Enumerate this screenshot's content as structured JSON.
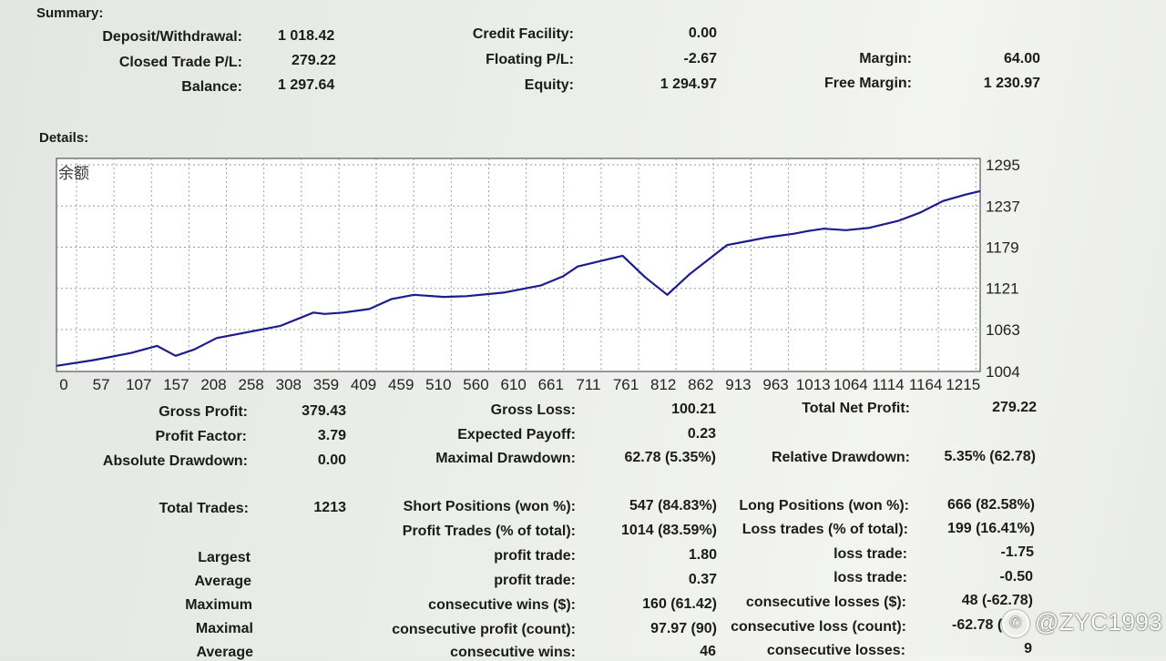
{
  "summary": {
    "heading": "Summary:",
    "deposit_label": "Deposit/Withdrawal:",
    "deposit_value": "1 018.42",
    "credit_label": "Credit Facility:",
    "credit_value": "0.00",
    "closed_label": "Closed Trade P/L:",
    "closed_value": "279.22",
    "floating_label": "Floating P/L:",
    "floating_value": "-2.67",
    "margin_label": "Margin:",
    "margin_value": "64.00",
    "balance_label": "Balance:",
    "balance_value": "1 297.64",
    "equity_label": "Equity:",
    "equity_value": "1 294.97",
    "free_margin_label": "Free Margin:",
    "free_margin_value": "1 230.97"
  },
  "details": {
    "heading": "Details:"
  },
  "chart_data": {
    "type": "line",
    "title": "余额",
    "xlabel": "",
    "ylabel": "",
    "x_ticks": [
      "0",
      "57",
      "107",
      "157",
      "208",
      "258",
      "308",
      "359",
      "409",
      "459",
      "510",
      "560",
      "610",
      "661",
      "711",
      "761",
      "812",
      "862",
      "913",
      "963",
      "1013",
      "1064",
      "1114",
      "1164",
      "1215"
    ],
    "y_ticks": [
      "1295",
      "1237",
      "1179",
      "1121",
      "1063",
      "1004"
    ],
    "xlim": [
      0,
      1240
    ],
    "ylim": [
      1004,
      1304
    ],
    "grid": true,
    "line_color": "#1c1c8c",
    "series": [
      {
        "x": [
          0,
          50,
          100,
          135,
          160,
          185,
          215,
          260,
          300,
          345,
          360,
          385,
          420,
          450,
          480,
          520,
          550,
          600,
          650,
          680,
          700,
          740,
          760,
          790,
          820,
          850,
          900,
          930,
          955,
          990,
          1010,
          1030,
          1060,
          1090,
          1130,
          1160,
          1190,
          1220,
          1240
        ],
        "y": [
          1012,
          1020,
          1030,
          1040,
          1026,
          1035,
          1051,
          1060,
          1068,
          1087,
          1085,
          1087,
          1092,
          1106,
          1112,
          1109,
          1110,
          1115,
          1125,
          1138,
          1152,
          1162,
          1167,
          1137,
          1112,
          1141,
          1182,
          1188,
          1193,
          1198,
          1202,
          1205,
          1203,
          1206,
          1216,
          1228,
          1244,
          1253,
          1258
        ]
      }
    ]
  },
  "stats": {
    "gross_profit_label": "Gross Profit:",
    "gross_profit_value": "379.43",
    "gross_loss_label": "Gross Loss:",
    "gross_loss_value": "100.21",
    "net_profit_label": "Total Net Profit:",
    "net_profit_value": "279.22",
    "profit_factor_label": "Profit Factor:",
    "profit_factor_value": "3.79",
    "expected_payoff_label": "Expected Payoff:",
    "expected_payoff_value": "0.23",
    "abs_dd_label": "Absolute Drawdown:",
    "abs_dd_value": "0.00",
    "max_dd_label": "Maximal Drawdown:",
    "max_dd_value": "62.78 (5.35%)",
    "rel_dd_label": "Relative Drawdown:",
    "rel_dd_value": "5.35% (62.78)",
    "total_trades_label": "Total Trades:",
    "total_trades_value": "1213",
    "short_label": "Short Positions (won %):",
    "short_value": "547 (84.83%)",
    "long_label": "Long Positions (won %):",
    "long_value": "666 (82.58%)",
    "profit_trades_label": "Profit Trades (% of total):",
    "profit_trades_value": "1014 (83.59%)",
    "loss_trades_label": "Loss trades (% of total):",
    "loss_trades_value": "199 (16.41%)",
    "largest_label": "Largest",
    "largest_profit_label": "profit trade:",
    "largest_profit_value": "1.80",
    "largest_loss_label": "loss trade:",
    "largest_loss_value": "-1.75",
    "average_label": "Average",
    "average_profit_label": "profit trade:",
    "average_profit_value": "0.37",
    "average_loss_label": "loss trade:",
    "average_loss_value": "-0.50",
    "maximum_label": "Maximum",
    "max_wins_label": "consecutive wins ($):",
    "max_wins_value": "160 (61.42)",
    "max_losses_label": "consecutive losses ($):",
    "max_losses_value": "48 (-62.78)",
    "maximal_label": "Maximal",
    "max_profit_label": "consecutive profit (count):",
    "max_profit_value": "97.97 (90)",
    "max_loss_label": "consecutive loss (count):",
    "max_loss_value": "-62.78 (",
    "average2_label": "Average",
    "avg_wins_label": "consecutive wins:",
    "avg_wins_value": "46",
    "avg_losses_label": "consecutive losses:",
    "avg_losses_value": "9"
  },
  "watermark": {
    "text": "@ZYC1993",
    "icon": "weibo-icon"
  }
}
